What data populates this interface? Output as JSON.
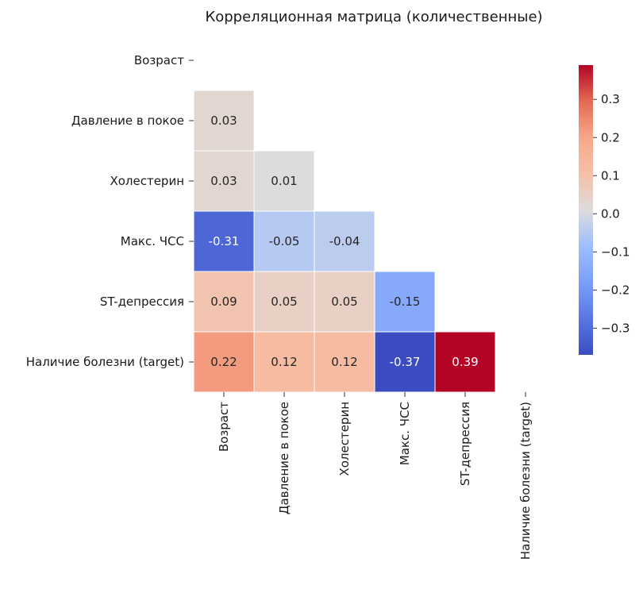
{
  "chart_data": {
    "type": "heatmap",
    "title": "Корреляционная матрица (количественные)",
    "variables": [
      "Возраст",
      "Давление в покое",
      "Холестерин",
      "Макс. ЧСС",
      "ST-депрессия",
      "Наличие болезни (target)"
    ],
    "mask": "upper-triangle-including-diagonal",
    "matrix": [
      [
        null,
        null,
        null,
        null,
        null,
        null
      ],
      [
        0.03,
        null,
        null,
        null,
        null,
        null
      ],
      [
        0.03,
        0.01,
        null,
        null,
        null,
        null
      ],
      [
        -0.31,
        -0.05,
        -0.04,
        null,
        null,
        null
      ],
      [
        0.09,
        0.05,
        0.05,
        -0.15,
        null,
        null
      ],
      [
        0.22,
        0.12,
        0.12,
        -0.37,
        0.39,
        null
      ]
    ],
    "colormap": "coolwarm",
    "vmin": -0.37,
    "vmax": 0.39,
    "colorbar_ticks": [
      "0.3",
      "0.2",
      "0.1",
      "0.0",
      "−0.1",
      "−0.2",
      "−0.3"
    ],
    "colorbar_tick_values": [
      0.3,
      0.2,
      0.1,
      0.0,
      -0.1,
      -0.2,
      -0.3
    ]
  }
}
